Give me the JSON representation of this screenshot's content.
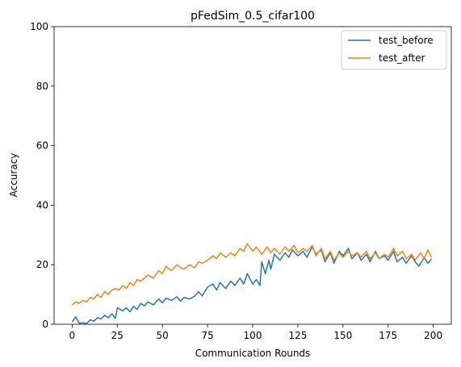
{
  "chart_data": {
    "type": "line",
    "title": "pFedSim_0.5_cifar100",
    "xlabel": "Communication Rounds",
    "ylabel": "Accuracy",
    "xlim": [
      -10,
      210
    ],
    "ylim": [
      0,
      100
    ],
    "xticks": [
      0,
      25,
      50,
      75,
      100,
      125,
      150,
      175,
      200
    ],
    "yticks": [
      0,
      20,
      40,
      60,
      80,
      100
    ],
    "grid": false,
    "legend_position": "top-right",
    "series": [
      {
        "name": "test_before",
        "color": "#1f77b4",
        "points": [
          [
            0,
            0.8
          ],
          [
            2,
            2.5
          ],
          [
            4,
            0.3
          ],
          [
            6,
            0.5
          ],
          [
            8,
            0.2
          ],
          [
            10,
            1.5
          ],
          [
            12,
            1.0
          ],
          [
            14,
            2.2
          ],
          [
            16,
            1.8
          ],
          [
            18,
            3.0
          ],
          [
            20,
            2.2
          ],
          [
            22,
            3.5
          ],
          [
            24,
            2.0
          ],
          [
            25,
            5.5
          ],
          [
            28,
            4.5
          ],
          [
            30,
            5.5
          ],
          [
            32,
            4.2
          ],
          [
            34,
            6.0
          ],
          [
            36,
            5.0
          ],
          [
            38,
            7.0
          ],
          [
            40,
            6.2
          ],
          [
            42,
            7.5
          ],
          [
            45,
            6.5
          ],
          [
            48,
            8.5
          ],
          [
            50,
            7.2
          ],
          [
            52,
            8.8
          ],
          [
            55,
            8.0
          ],
          [
            58,
            9.2
          ],
          [
            60,
            7.8
          ],
          [
            62,
            9.0
          ],
          [
            65,
            8.5
          ],
          [
            68,
            9.5
          ],
          [
            70,
            11.0
          ],
          [
            72,
            9.5
          ],
          [
            75,
            12.5
          ],
          [
            78,
            13.5
          ],
          [
            80,
            11.5
          ],
          [
            82,
            14.0
          ],
          [
            85,
            12.0
          ],
          [
            88,
            14.5
          ],
          [
            90,
            13.0
          ],
          [
            93,
            15.5
          ],
          [
            95,
            13.5
          ],
          [
            97,
            17.0
          ],
          [
            100,
            13.5
          ],
          [
            102,
            15.0
          ],
          [
            104,
            13.0
          ],
          [
            105,
            21.0
          ],
          [
            107,
            17.0
          ],
          [
            109,
            21.5
          ],
          [
            110,
            18.5
          ],
          [
            112,
            23.5
          ],
          [
            115,
            21.5
          ],
          [
            118,
            24.0
          ],
          [
            120,
            22.5
          ],
          [
            122,
            25.0
          ],
          [
            125,
            23.0
          ],
          [
            128,
            24.5
          ],
          [
            130,
            22.5
          ],
          [
            133,
            26.0
          ],
          [
            135,
            23.5
          ],
          [
            138,
            25.0
          ],
          [
            140,
            21.0
          ],
          [
            143,
            24.0
          ],
          [
            145,
            20.5
          ],
          [
            148,
            24.5
          ],
          [
            150,
            23.0
          ],
          [
            153,
            25.5
          ],
          [
            155,
            22.0
          ],
          [
            158,
            24.0
          ],
          [
            160,
            21.5
          ],
          [
            163,
            23.5
          ],
          [
            165,
            21.0
          ],
          [
            168,
            24.5
          ],
          [
            170,
            22.0
          ],
          [
            173,
            23.0
          ],
          [
            175,
            21.5
          ],
          [
            178,
            24.5
          ],
          [
            180,
            21.0
          ],
          [
            183,
            22.5
          ],
          [
            185,
            20.5
          ],
          [
            188,
            23.0
          ],
          [
            190,
            21.0
          ],
          [
            192,
            19.5
          ],
          [
            195,
            22.5
          ],
          [
            197,
            20.5
          ],
          [
            199,
            22.0
          ]
        ]
      },
      {
        "name": "test_after",
        "color": "#ff7f0e",
        "points": [
          [
            0,
            6.5
          ],
          [
            2,
            7.5
          ],
          [
            4,
            7.0
          ],
          [
            6,
            8.0
          ],
          [
            8,
            7.5
          ],
          [
            10,
            9.0
          ],
          [
            12,
            8.5
          ],
          [
            14,
            10.0
          ],
          [
            16,
            9.0
          ],
          [
            18,
            11.0
          ],
          [
            20,
            10.0
          ],
          [
            22,
            11.5
          ],
          [
            24,
            12.0
          ],
          [
            26,
            11.5
          ],
          [
            28,
            13.0
          ],
          [
            30,
            12.0
          ],
          [
            32,
            14.0
          ],
          [
            34,
            13.0
          ],
          [
            36,
            15.0
          ],
          [
            38,
            14.5
          ],
          [
            40,
            15.5
          ],
          [
            42,
            16.5
          ],
          [
            45,
            15.5
          ],
          [
            48,
            18.0
          ],
          [
            50,
            17.0
          ],
          [
            52,
            19.5
          ],
          [
            55,
            18.0
          ],
          [
            58,
            20.0
          ],
          [
            60,
            19.0
          ],
          [
            62,
            18.5
          ],
          [
            65,
            20.0
          ],
          [
            68,
            19.0
          ],
          [
            70,
            21.0
          ],
          [
            72,
            20.5
          ],
          [
            75,
            21.5
          ],
          [
            78,
            23.0
          ],
          [
            80,
            22.0
          ],
          [
            82,
            24.0
          ],
          [
            85,
            22.5
          ],
          [
            88,
            24.0
          ],
          [
            90,
            23.0
          ],
          [
            93,
            25.5
          ],
          [
            95,
            24.5
          ],
          [
            97,
            27.0
          ],
          [
            100,
            24.5
          ],
          [
            102,
            26.0
          ],
          [
            105,
            23.5
          ],
          [
            108,
            26.0
          ],
          [
            110,
            24.0
          ],
          [
            112,
            25.5
          ],
          [
            115,
            23.5
          ],
          [
            118,
            26.0
          ],
          [
            120,
            24.5
          ],
          [
            123,
            26.5
          ],
          [
            125,
            24.0
          ],
          [
            128,
            25.5
          ],
          [
            130,
            24.5
          ],
          [
            133,
            26.5
          ],
          [
            135,
            23.0
          ],
          [
            138,
            25.5
          ],
          [
            140,
            22.0
          ],
          [
            143,
            24.5
          ],
          [
            145,
            21.5
          ],
          [
            148,
            24.0
          ],
          [
            150,
            22.5
          ],
          [
            153,
            24.5
          ],
          [
            155,
            23.0
          ],
          [
            158,
            24.0
          ],
          [
            160,
            22.5
          ],
          [
            163,
            24.5
          ],
          [
            165,
            22.0
          ],
          [
            168,
            24.0
          ],
          [
            170,
            22.0
          ],
          [
            173,
            23.5
          ],
          [
            175,
            22.5
          ],
          [
            178,
            25.5
          ],
          [
            180,
            23.0
          ],
          [
            183,
            24.5
          ],
          [
            185,
            22.0
          ],
          [
            188,
            23.5
          ],
          [
            190,
            21.5
          ],
          [
            193,
            24.0
          ],
          [
            195,
            22.0
          ],
          [
            197,
            25.0
          ],
          [
            199,
            22.5
          ]
        ]
      }
    ]
  }
}
